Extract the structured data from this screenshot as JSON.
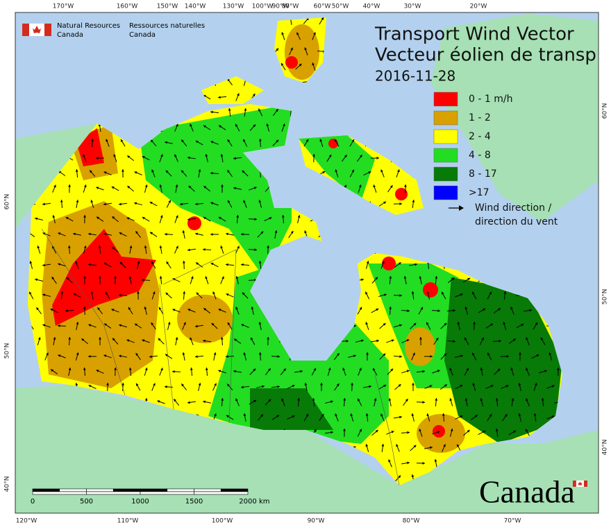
{
  "agency": {
    "en_line1": "Natural Resources",
    "en_line2": "Canada",
    "fr_line1": "Ressources naturelles",
    "fr_line2": "Canada"
  },
  "title": {
    "en": "Transport Wind Vector",
    "fr": "Vecteur éolien de transp",
    "date": "2016-11-28"
  },
  "legend": {
    "items": [
      {
        "label": "0 - 1 m/h",
        "color": "#ff0000"
      },
      {
        "label": "1 - 2",
        "color": "#d9a100"
      },
      {
        "label": "2 - 4",
        "color": "#ffff00"
      },
      {
        "label": "4 - 8",
        "color": "#22dd22"
      },
      {
        "label": "8 - 17",
        "color": "#077a07"
      },
      {
        "label": ">17",
        "color": "#0000ff"
      }
    ],
    "arrow_line1": "Wind direction /",
    "arrow_line2": "direction du vent"
  },
  "scale_bar": {
    "labels": [
      "0",
      "500",
      "1000",
      "1500",
      "2000"
    ],
    "unit": "km"
  },
  "graticule": {
    "top": [
      "170°W",
      "160°W",
      "150°W",
      "140°W",
      "130°W",
      "100°W",
      "90°W",
      "80°W",
      "60°W",
      "50°W",
      "40°W",
      "30°W",
      "20°W"
    ],
    "bottom": [
      "120°W",
      "110°W",
      "100°W",
      "90°W",
      "80°W",
      "70°W"
    ],
    "left": [
      "60°N",
      "50°N",
      "40°N"
    ],
    "right": [
      "60°N",
      "50°N",
      "40°N"
    ]
  },
  "wordmark": "Canada"
}
